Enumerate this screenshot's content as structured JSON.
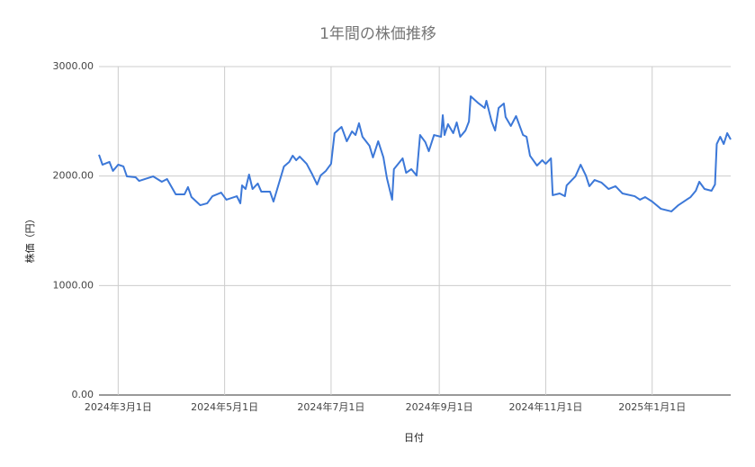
{
  "chart_data": {
    "type": "line",
    "title": "1年間の株価推移",
    "x_label": "日付",
    "y_label": "株価（円）",
    "color": "#3c78d8",
    "grid": true,
    "xlim": [
      "2024-02-19",
      "2025-02-15"
    ],
    "xticks": [
      {
        "value": "2024-03-01",
        "label": "2024年3月1日"
      },
      {
        "value": "2024-05-01",
        "label": "2024年5月1日"
      },
      {
        "value": "2024-07-01",
        "label": "2024年7月1日"
      },
      {
        "value": "2024-09-01",
        "label": "2024年9月1日"
      },
      {
        "value": "2024-11-01",
        "label": "2024年11月1日"
      },
      {
        "value": "2025-01-01",
        "label": "2025年1月1日"
      }
    ],
    "ylim": [
      0,
      3000
    ],
    "yticks": [
      {
        "value": 0,
        "label": "0.00"
      },
      {
        "value": 1000,
        "label": "1000.00"
      },
      {
        "value": 2000,
        "label": "2000.00"
      },
      {
        "value": 3000,
        "label": "3000.00"
      }
    ],
    "x": [
      "2024-02-19",
      "2024-02-21",
      "2024-02-25",
      "2024-02-27",
      "2024-03-01",
      "2024-03-04",
      "2024-03-06",
      "2024-03-11",
      "2024-03-13",
      "2024-03-21",
      "2024-03-26",
      "2024-03-29",
      "2024-04-03",
      "2024-04-08",
      "2024-04-10",
      "2024-04-12",
      "2024-04-17",
      "2024-04-21",
      "2024-04-24",
      "2024-04-29",
      "2024-05-02",
      "2024-05-08",
      "2024-05-10",
      "2024-05-11",
      "2024-05-13",
      "2024-05-15",
      "2024-05-17",
      "2024-05-20",
      "2024-05-22",
      "2024-05-27",
      "2024-05-29",
      "2024-06-04",
      "2024-06-07",
      "2024-06-09",
      "2024-06-11",
      "2024-06-13",
      "2024-06-17",
      "2024-06-20",
      "2024-06-23",
      "2024-06-25",
      "2024-06-28",
      "2024-07-01",
      "2024-07-03",
      "2024-07-07",
      "2024-07-10",
      "2024-07-13",
      "2024-07-15",
      "2024-07-17",
      "2024-07-19",
      "2024-07-23",
      "2024-07-25",
      "2024-07-28",
      "2024-07-31",
      "2024-08-02",
      "2024-08-05",
      "2024-08-06",
      "2024-08-11",
      "2024-08-13",
      "2024-08-16",
      "2024-08-19",
      "2024-08-21",
      "2024-08-24",
      "2024-08-26",
      "2024-08-29",
      "2024-09-02",
      "2024-09-03",
      "2024-09-04",
      "2024-09-06",
      "2024-09-09",
      "2024-09-11",
      "2024-09-13",
      "2024-09-16",
      "2024-09-18",
      "2024-09-19",
      "2024-09-23",
      "2024-09-27",
      "2024-09-28",
      "2024-10-01",
      "2024-10-03",
      "2024-10-05",
      "2024-10-08",
      "2024-10-09",
      "2024-10-12",
      "2024-10-15",
      "2024-10-19",
      "2024-10-21",
      "2024-10-23",
      "2024-10-27",
      "2024-10-30",
      "2024-11-01",
      "2024-11-04",
      "2024-11-05",
      "2024-11-09",
      "2024-11-12",
      "2024-11-13",
      "2024-11-18",
      "2024-11-21",
      "2024-11-24",
      "2024-11-26",
      "2024-11-29",
      "2024-12-03",
      "2024-12-07",
      "2024-12-11",
      "2024-12-15",
      "2024-12-22",
      "2024-12-25",
      "2024-12-28",
      "2025-01-01",
      "2025-01-06",
      "2025-01-12",
      "2025-01-16",
      "2025-01-23",
      "2025-01-26",
      "2025-01-28",
      "2025-01-31",
      "2025-02-04",
      "2025-02-06",
      "2025-02-07",
      "2025-02-09",
      "2025-02-11",
      "2025-02-13",
      "2025-02-15"
    ],
    "values": [
      2195,
      2104,
      2129,
      2047,
      2104,
      2088,
      1997,
      1989,
      1956,
      1997,
      1948,
      1973,
      1833,
      1833,
      1899,
      1808,
      1734,
      1751,
      1816,
      1849,
      1784,
      1816,
      1751,
      1915,
      1882,
      2014,
      1882,
      1932,
      1858,
      1858,
      1767,
      2088,
      2129,
      2186,
      2145,
      2178,
      2112,
      2022,
      1923,
      2005,
      2047,
      2112,
      2392,
      2449,
      2318,
      2408,
      2375,
      2482,
      2359,
      2277,
      2170,
      2318,
      2170,
      1981,
      1784,
      2063,
      2162,
      2030,
      2063,
      2005,
      2375,
      2310,
      2227,
      2375,
      2359,
      2556,
      2375,
      2474,
      2392,
      2490,
      2359,
      2416,
      2499,
      2729,
      2671,
      2622,
      2688,
      2499,
      2416,
      2622,
      2663,
      2540,
      2457,
      2548,
      2375,
      2359,
      2186,
      2096,
      2145,
      2112,
      2162,
      1825,
      1841,
      1816,
      1915,
      1997,
      2104,
      2005,
      1907,
      1964,
      1940,
      1882,
      1907,
      1841,
      1816,
      1784,
      1808,
      1767,
      1701,
      1677,
      1734,
      1808,
      1866,
      1948,
      1882,
      1866,
      1923,
      2293,
      2359,
      2293,
      2392,
      2334
    ]
  }
}
